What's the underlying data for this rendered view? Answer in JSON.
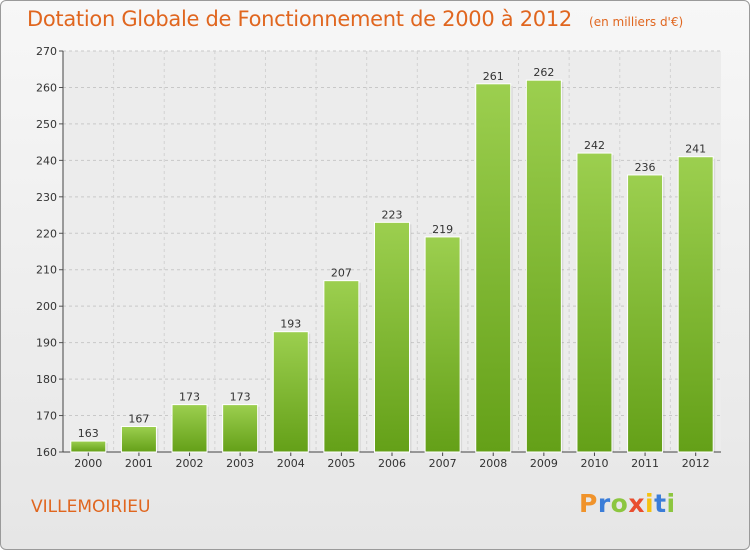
{
  "header": {
    "title": "Dotation Globale de Fonctionnement de 2000 à 2012",
    "subtitle": "(en milliers d'€)"
  },
  "footer": {
    "commune": "VILLEMOIRIEU",
    "logo_letters": [
      "P",
      "r",
      "o",
      "x",
      "i",
      "t",
      "i"
    ],
    "logo_colors": [
      "#f0932b",
      "#3b7dd8",
      "#8cc63f",
      "#e94e2f",
      "#f5c211",
      "#3b7dd8",
      "#8cc63f"
    ]
  },
  "chart_data": {
    "type": "bar",
    "categories": [
      "2000",
      "2001",
      "2002",
      "2003",
      "2004",
      "2005",
      "2006",
      "2007",
      "2008",
      "2009",
      "2010",
      "2011",
      "2012"
    ],
    "values": [
      163,
      167,
      173,
      173,
      193,
      207,
      223,
      219,
      261,
      262,
      242,
      236,
      241
    ],
    "ylim": [
      160,
      270
    ],
    "yticks": [
      160,
      170,
      180,
      190,
      200,
      210,
      220,
      230,
      240,
      250,
      260,
      270
    ],
    "grid": true,
    "bar_color_top": "#9ccf4f",
    "bar_color_bottom": "#64a018",
    "title": "Dotation Globale de Fonctionnement de 2000 à 2012",
    "subtitle": "(en milliers d'€)"
  }
}
